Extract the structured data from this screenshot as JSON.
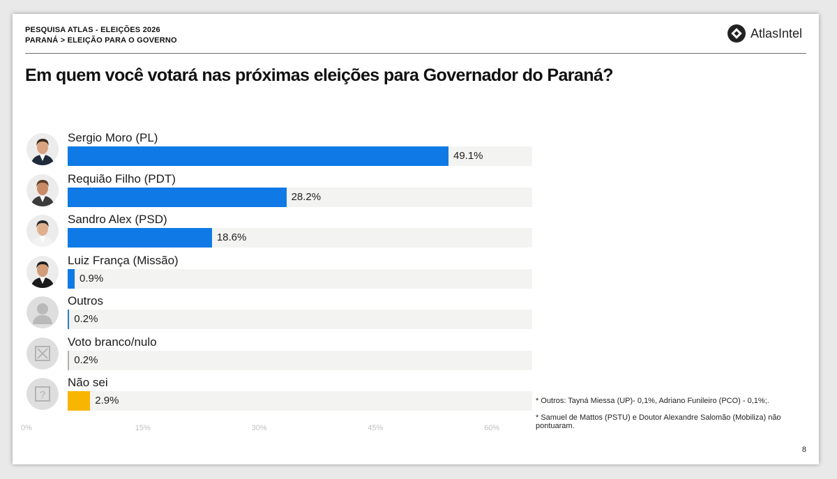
{
  "header": {
    "survey_title": "PESQUISA ATLAS - ELEIÇÕES 2026",
    "breadcrumb": "PARANÁ > ELEIÇÃO PARA O GOVERNO",
    "logo_text": "AtlasIntel"
  },
  "question": "Em quem você votará nas próximas eleições para Governador do Paraná?",
  "chart_data": {
    "type": "bar",
    "orientation": "horizontal",
    "title": "Em quem você votará nas próximas eleições para Governador do Paraná?",
    "categories": [
      "Sergio Moro (PL)",
      "Requião Filho (PDT)",
      "Sandro Alex (PSD)",
      "Luiz França (Missão)",
      "Outros",
      "Voto branco/nulo",
      "Não sei"
    ],
    "values": [
      49.1,
      28.2,
      18.6,
      0.9,
      0.2,
      0.2,
      2.9
    ],
    "value_labels": [
      "49.1%",
      "28.2%",
      "18.6%",
      "0.9%",
      "0.2%",
      "0.2%",
      "2.9%"
    ],
    "colors": [
      "#0f7ae5",
      "#0f7ae5",
      "#0f7ae5",
      "#0f7ae5",
      "#2a7fc0",
      "#b0b0b0",
      "#f8b500"
    ],
    "avatar_types": [
      "photo",
      "photo",
      "photo",
      "photo",
      "person-silhouette",
      "x-box",
      "question-box"
    ],
    "xlim": [
      0,
      60
    ],
    "x_ticks": [
      "0%",
      "15%",
      "30%",
      "45%",
      "60%"
    ],
    "grid": false
  },
  "notes": [
    "* Outros: Tayná Miessa (UP)- 0,1%, Adriano Funileiro (PCO) - 0,1%;.",
    "* Samuel de Mattos (PSTU) e Doutor Alexandre Salomão (Mobiliza) não pontuaram."
  ],
  "page_number": "8"
}
